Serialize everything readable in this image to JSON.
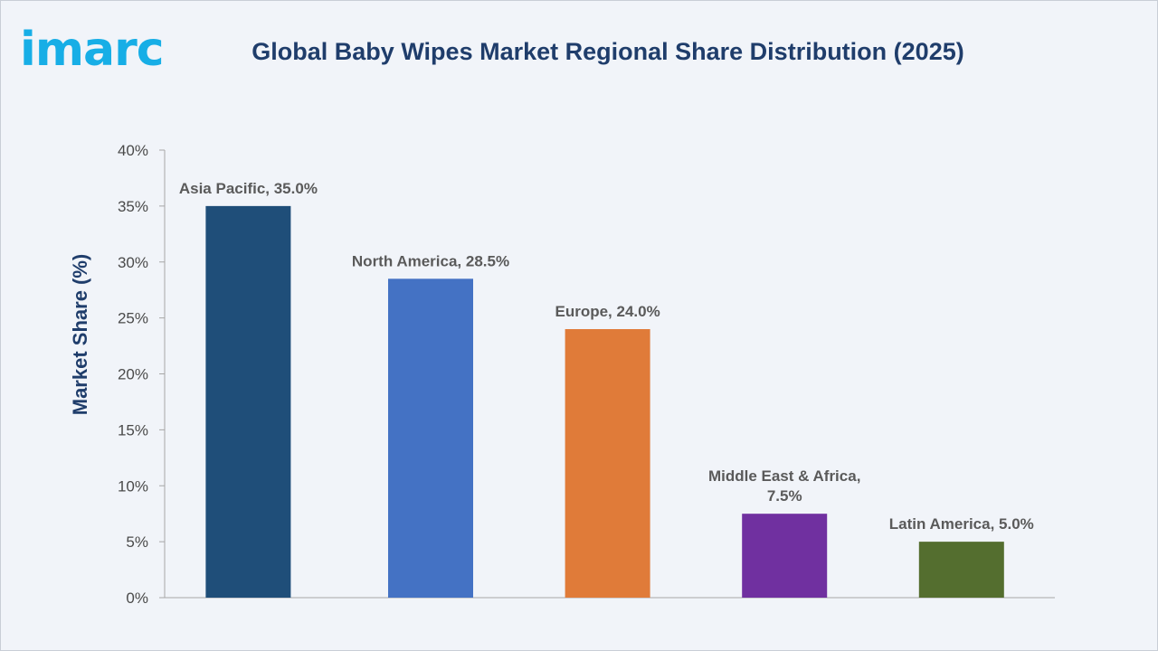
{
  "brand": {
    "name": "imarc",
    "color": "#17aee6"
  },
  "chart_data": {
    "type": "bar",
    "title": "Global Baby Wipes Market Regional Share Distribution (2025)",
    "xlabel": "",
    "ylabel": "Market Share (%)",
    "ylim": [
      0,
      40
    ],
    "y_ticks": [
      0,
      5,
      10,
      15,
      20,
      25,
      30,
      35,
      40
    ],
    "y_tick_format": "%",
    "grid": false,
    "legend": "none",
    "categories": [
      "Asia Pacific",
      "North America",
      "Europe",
      "Middle East & Africa",
      "Latin America"
    ],
    "values": [
      35.0,
      28.5,
      24.0,
      7.5,
      5.0
    ],
    "data_labels": [
      [
        "Asia Pacific, 35.0%"
      ],
      [
        "North America, 28.5%"
      ],
      [
        "Europe, 24.0%"
      ],
      [
        "Middle East & Africa,",
        "7.5%"
      ],
      [
        "Latin America, 5.0%"
      ]
    ],
    "colors": [
      "#1f4e79",
      "#4472c4",
      "#e07b39",
      "#7030a0",
      "#546e2f"
    ]
  }
}
